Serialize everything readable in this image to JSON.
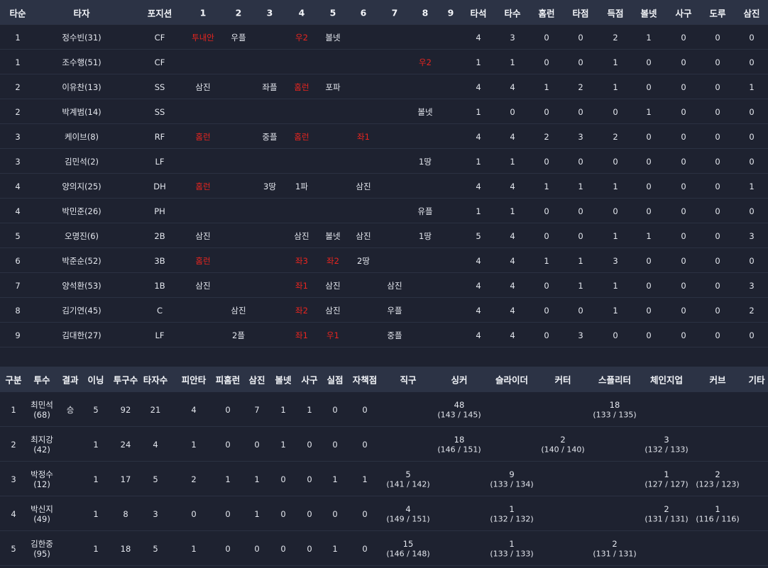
{
  "batting": {
    "headers": [
      "타순",
      "타자",
      "포지션",
      "1",
      "2",
      "3",
      "4",
      "5",
      "6",
      "7",
      "8",
      "9",
      "타석",
      "타수",
      "홈런",
      "타점",
      "득점",
      "볼넷",
      "사구",
      "도루",
      "삼진"
    ],
    "rows": [
      {
        "order": 1,
        "batter": "정수빈(31)",
        "position": "CF",
        "innings": [
          {
            "text": "투내안",
            "highlight": true
          },
          {
            "text": "우플"
          },
          null,
          {
            "text": "우2",
            "highlight": true
          },
          {
            "text": "볼넷"
          },
          null,
          null,
          null,
          null
        ],
        "stats": [
          4,
          3,
          0,
          0,
          2,
          1,
          0,
          0,
          0
        ]
      },
      {
        "order": 1,
        "batter": "조수행(51)",
        "position": "CF",
        "innings": [
          null,
          null,
          null,
          null,
          null,
          null,
          null,
          {
            "text": "우2",
            "highlight": true
          },
          null
        ],
        "stats": [
          1,
          1,
          0,
          0,
          1,
          0,
          0,
          0,
          0
        ]
      },
      {
        "order": 2,
        "batter": "이유찬(13)",
        "position": "SS",
        "innings": [
          {
            "text": "삼진"
          },
          null,
          {
            "text": "좌플"
          },
          {
            "text": "홈런",
            "highlight": true
          },
          {
            "text": "포파"
          },
          null,
          null,
          null,
          null
        ],
        "stats": [
          4,
          4,
          1,
          2,
          1,
          0,
          0,
          0,
          1
        ]
      },
      {
        "order": 2,
        "batter": "박계범(14)",
        "position": "SS",
        "innings": [
          null,
          null,
          null,
          null,
          null,
          null,
          null,
          {
            "text": "볼넷"
          },
          null
        ],
        "stats": [
          1,
          0,
          0,
          0,
          0,
          1,
          0,
          0,
          0
        ]
      },
      {
        "order": 3,
        "batter": "케이브(8)",
        "position": "RF",
        "innings": [
          {
            "text": "홈런",
            "highlight": true
          },
          null,
          {
            "text": "중플"
          },
          {
            "text": "홈런",
            "highlight": true
          },
          null,
          {
            "text": "좌1",
            "highlight": true
          },
          null,
          null,
          null
        ],
        "stats": [
          4,
          4,
          2,
          3,
          2,
          0,
          0,
          0,
          0
        ]
      },
      {
        "order": 3,
        "batter": "김민석(2)",
        "position": "LF",
        "innings": [
          null,
          null,
          null,
          null,
          null,
          null,
          null,
          {
            "text": "1땅"
          },
          null
        ],
        "stats": [
          1,
          1,
          0,
          0,
          0,
          0,
          0,
          0,
          0
        ]
      },
      {
        "order": 4,
        "batter": "양의지(25)",
        "position": "DH",
        "innings": [
          {
            "text": "홈런",
            "highlight": true
          },
          null,
          {
            "text": "3땅"
          },
          {
            "text": "1파"
          },
          null,
          {
            "text": "삼진"
          },
          null,
          null,
          null
        ],
        "stats": [
          4,
          4,
          1,
          1,
          1,
          0,
          0,
          0,
          1
        ]
      },
      {
        "order": 4,
        "batter": "박민준(26)",
        "position": "PH",
        "innings": [
          null,
          null,
          null,
          null,
          null,
          null,
          null,
          {
            "text": "유플"
          },
          null
        ],
        "stats": [
          1,
          1,
          0,
          0,
          0,
          0,
          0,
          0,
          0
        ]
      },
      {
        "order": 5,
        "batter": "오명진(6)",
        "position": "2B",
        "innings": [
          {
            "text": "삼진"
          },
          null,
          null,
          {
            "text": "삼진"
          },
          {
            "text": "볼넷"
          },
          {
            "text": "삼진"
          },
          null,
          {
            "text": "1땅"
          },
          null
        ],
        "stats": [
          5,
          4,
          0,
          0,
          1,
          1,
          0,
          0,
          3
        ]
      },
      {
        "order": 6,
        "batter": "박준순(52)",
        "position": "3B",
        "innings": [
          {
            "text": "홈런",
            "highlight": true
          },
          null,
          null,
          {
            "text": "좌3",
            "highlight": true
          },
          {
            "text": "좌2",
            "highlight": true
          },
          {
            "text": "2땅"
          },
          null,
          null,
          null
        ],
        "stats": [
          4,
          4,
          1,
          1,
          3,
          0,
          0,
          0,
          0
        ]
      },
      {
        "order": 7,
        "batter": "양석환(53)",
        "position": "1B",
        "innings": [
          {
            "text": "삼진"
          },
          null,
          null,
          {
            "text": "좌1",
            "highlight": true
          },
          {
            "text": "삼진"
          },
          null,
          {
            "text": "삼진"
          },
          null,
          null
        ],
        "stats": [
          4,
          4,
          0,
          1,
          1,
          0,
          0,
          0,
          3
        ]
      },
      {
        "order": 8,
        "batter": "김기연(45)",
        "position": "C",
        "innings": [
          null,
          {
            "text": "삼진"
          },
          null,
          {
            "text": "좌2",
            "highlight": true
          },
          {
            "text": "삼진"
          },
          null,
          {
            "text": "우플"
          },
          null,
          null
        ],
        "stats": [
          4,
          4,
          0,
          0,
          1,
          0,
          0,
          0,
          2
        ]
      },
      {
        "order": 9,
        "batter": "김대한(27)",
        "position": "LF",
        "innings": [
          null,
          {
            "text": "2플"
          },
          null,
          {
            "text": "좌1",
            "highlight": true
          },
          {
            "text": "우1",
            "highlight": true
          },
          null,
          {
            "text": "중플"
          },
          null,
          null
        ],
        "stats": [
          4,
          4,
          0,
          3,
          0,
          0,
          0,
          0,
          0
        ]
      }
    ]
  },
  "pitching": {
    "headers": [
      "구분",
      "투수",
      "결과",
      "이닝",
      "투구수",
      "타자수",
      "피안타",
      "피홈런",
      "삼진",
      "볼넷",
      "사구",
      "실점",
      "자책점",
      "직구",
      "싱커",
      "슬라이더",
      "커터",
      "스플리터",
      "체인지업",
      "커브",
      "기타"
    ],
    "rows": [
      {
        "no": 1,
        "pitcher": "최민석",
        "number": "(68)",
        "result": "승",
        "stats": [
          5,
          92,
          21,
          4,
          0,
          7,
          1,
          1,
          0,
          0
        ],
        "pitches": [
          null,
          {
            "count": 48,
            "speed": "(143 / 145)"
          },
          null,
          null,
          {
            "count": 18,
            "speed": "(133 / 135)"
          },
          null,
          null,
          null
        ]
      },
      {
        "no": 2,
        "pitcher": "최지강",
        "number": "(42)",
        "result": null,
        "stats": [
          1,
          24,
          4,
          1,
          0,
          0,
          1,
          0,
          0,
          0
        ],
        "pitches": [
          null,
          {
            "count": 18,
            "speed": "(146 / 151)"
          },
          null,
          {
            "count": 2,
            "speed": "(140 / 140)"
          },
          null,
          {
            "count": 3,
            "speed": "(132 / 133)"
          },
          null,
          null
        ]
      },
      {
        "no": 3,
        "pitcher": "박정수",
        "number": "(12)",
        "result": null,
        "stats": [
          1,
          17,
          5,
          2,
          1,
          1,
          0,
          0,
          1,
          1
        ],
        "pitches": [
          {
            "count": 5,
            "speed": "(141 / 142)"
          },
          null,
          {
            "count": 9,
            "speed": "(133 / 134)"
          },
          null,
          null,
          {
            "count": 1,
            "speed": "(127 / 127)"
          },
          {
            "count": 2,
            "speed": "(123 / 123)"
          },
          null
        ]
      },
      {
        "no": 4,
        "pitcher": "박신지",
        "number": "(49)",
        "result": null,
        "stats": [
          1,
          8,
          3,
          0,
          0,
          1,
          0,
          0,
          0,
          0
        ],
        "pitches": [
          {
            "count": 4,
            "speed": "(149 / 151)"
          },
          null,
          {
            "count": 1,
            "speed": "(132 / 132)"
          },
          null,
          null,
          {
            "count": 2,
            "speed": "(131 / 131)"
          },
          {
            "count": 1,
            "speed": "(116 / 116)"
          },
          null
        ]
      },
      {
        "no": 5,
        "pitcher": "김한중",
        "number": "(95)",
        "result": null,
        "stats": [
          1,
          18,
          5,
          1,
          0,
          0,
          0,
          0,
          1,
          0
        ],
        "pitches": [
          {
            "count": 15,
            "speed": "(146 / 148)"
          },
          null,
          {
            "count": 1,
            "speed": "(133 / 133)"
          },
          null,
          {
            "count": 2,
            "speed": "(131 / 131)"
          },
          null,
          null,
          null
        ]
      }
    ]
  }
}
